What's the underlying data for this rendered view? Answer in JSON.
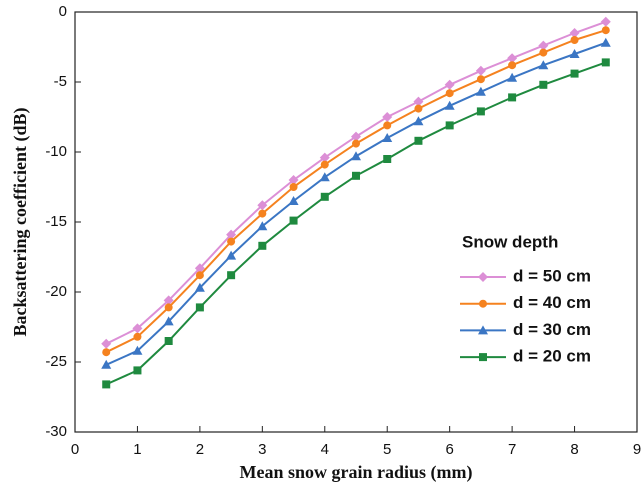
{
  "chart_data": {
    "type": "line",
    "xlabel": "Mean snow grain radius (mm)",
    "ylabel": "Backsattering coefficient (dB)",
    "legend_title": "Snow depth",
    "legend": "lower right",
    "x": [
      0.5,
      1,
      1.5,
      2,
      2.5,
      3,
      3.5,
      4,
      4.5,
      5,
      5.5,
      6,
      6.5,
      7,
      7.5,
      8,
      8.5
    ],
    "series": [
      {
        "name": "d = 50 cm",
        "color": "#dc8fd6",
        "marker": "diamond",
        "values": [
          -23.7,
          -22.6,
          -20.6,
          -18.3,
          -15.9,
          -13.8,
          -12.0,
          -10.4,
          -8.9,
          -7.5,
          -6.4,
          -5.2,
          -4.2,
          -3.3,
          -2.4,
          -1.5,
          -0.7
        ]
      },
      {
        "name": "d = 40 cm",
        "color": "#f5821f",
        "marker": "circle",
        "values": [
          -24.3,
          -23.2,
          -21.1,
          -18.8,
          -16.4,
          -14.4,
          -12.5,
          -10.9,
          -9.4,
          -8.1,
          -6.9,
          -5.8,
          -4.8,
          -3.8,
          -2.9,
          -2.0,
          -1.3
        ]
      },
      {
        "name": "d = 30 cm",
        "color": "#3b76c4",
        "marker": "triangle",
        "values": [
          -25.2,
          -24.2,
          -22.1,
          -19.7,
          -17.4,
          -15.3,
          -13.5,
          -11.8,
          -10.3,
          -9.0,
          -7.8,
          -6.7,
          -5.7,
          -4.7,
          -3.8,
          -3.0,
          -2.2
        ]
      },
      {
        "name": "d = 20 cm",
        "color": "#1f8a3f",
        "marker": "square",
        "values": [
          -26.6,
          -25.6,
          -23.5,
          -21.1,
          -18.8,
          -16.7,
          -14.9,
          -13.2,
          -11.7,
          -10.5,
          -9.2,
          -8.1,
          -7.1,
          -6.1,
          -5.2,
          -4.4,
          -3.6
        ]
      }
    ],
    "xlim": [
      0,
      9
    ],
    "xticks": [
      0,
      1,
      2,
      3,
      4,
      5,
      6,
      7,
      8,
      9
    ],
    "ylim": [
      -30,
      0
    ],
    "yticks": [
      0,
      -5,
      -10,
      -15,
      -20,
      -25,
      -30
    ],
    "grid": false
  }
}
